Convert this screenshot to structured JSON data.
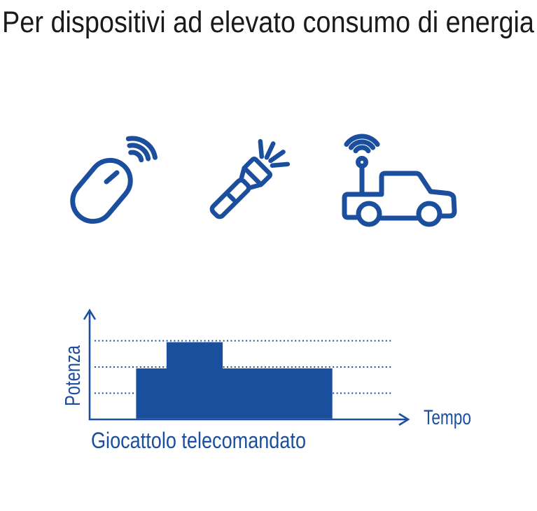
{
  "theme": {
    "accent_blue": "#1B4F9E",
    "fill_blue": "#1A4F9E",
    "title_color": "#1A1A1A",
    "background": "#FFFFFF"
  },
  "header": {
    "title": "Per dispositivi ad elevato consumo di energia"
  },
  "icons": [
    {
      "name": "wireless-mouse-icon",
      "meaning": "wireless computer mouse with signal waves"
    },
    {
      "name": "flashlight-icon",
      "meaning": "flashlight with light rays"
    },
    {
      "name": "rc-car-icon",
      "meaning": "remote-controlled toy car with antenna and signal waves"
    }
  ],
  "chart_data": {
    "type": "area",
    "variant": "stepped-power-profile",
    "title": "",
    "xlabel": "Tempo",
    "ylabel": "Potenza",
    "caption": "Giocattolo telecomandato",
    "x_axis": {
      "min": 0,
      "max": 1,
      "ticks": [],
      "arrow": true
    },
    "y_axis": {
      "min": 0,
      "max": 4.2,
      "ticks": [],
      "arrow": true
    },
    "gridlines": {
      "style": "dotted-horizontal",
      "levels": [
        1,
        2,
        3
      ]
    },
    "legend": "none",
    "series": [
      {
        "name": "Giocattolo telecomandato",
        "steps": [
          {
            "x_start": 0.145,
            "x_end": 0.24,
            "level": 2
          },
          {
            "x_start": 0.24,
            "x_end": 0.415,
            "level": 3
          },
          {
            "x_start": 0.415,
            "x_end": 0.757,
            "level": 2
          }
        ]
      }
    ]
  }
}
